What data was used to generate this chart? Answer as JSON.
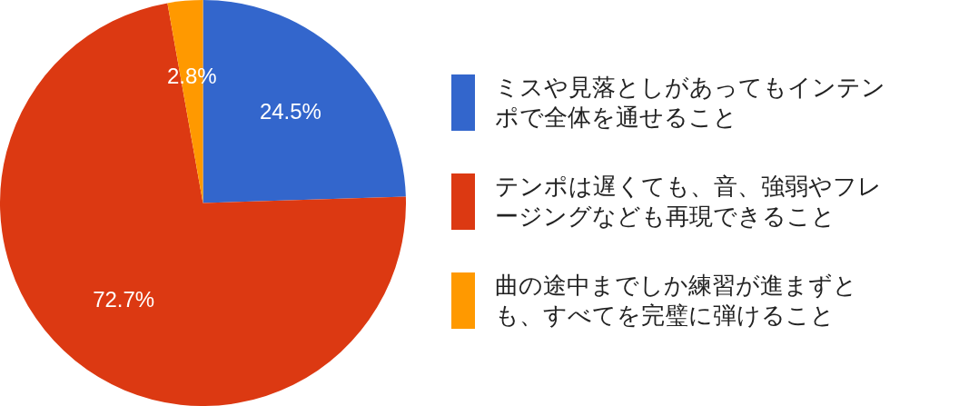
{
  "chart_data": {
    "type": "pie",
    "categories": [
      "ミスや見落としがあってもインテンポで全体を通せること",
      "テンポは遅くても、音、強弱やフレージングなども再現できること",
      "曲の途中までしか練習が進まずとも、すべてを完璧に弾けること"
    ],
    "values": [
      24.5,
      72.7,
      2.8
    ],
    "colors": [
      "#3366cc",
      "#dc3912",
      "#ff9900"
    ],
    "value_labels": [
      "24.5%",
      "72.7%",
      "2.8%"
    ],
    "legend": "right"
  }
}
